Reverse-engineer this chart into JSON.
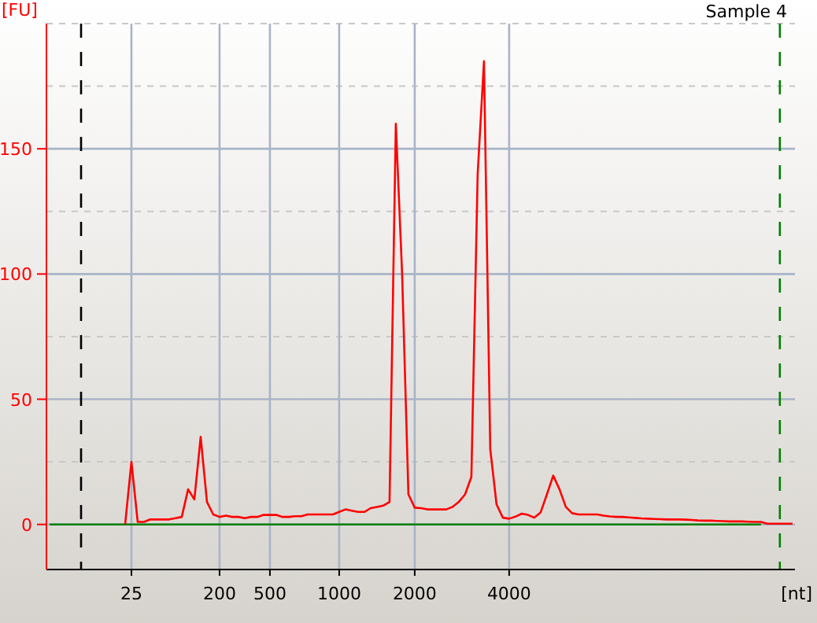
{
  "chart_data": {
    "type": "line",
    "title": "Sample 4",
    "xlabel": "[nt]",
    "ylabel": "[FU]",
    "categories": [
      null,
      null,
      null,
      null,
      null,
      null,
      null,
      null,
      null,
      null,
      null,
      null,
      null,
      "25",
      null,
      null,
      null,
      null,
      null,
      null,
      null,
      null,
      null,
      null,
      null,
      null,
      null,
      "200",
      null,
      null,
      null,
      null,
      null,
      null,
      null,
      "500",
      null,
      null,
      null,
      null,
      null,
      null,
      null,
      null,
      null,
      null,
      "1000",
      null,
      null,
      null,
      null,
      null,
      null,
      null,
      null,
      null,
      null,
      null,
      "2000",
      null,
      null,
      null,
      null,
      null,
      null,
      null,
      null,
      null,
      null,
      null,
      null,
      null,
      null,
      "4000",
      null,
      null,
      null,
      null,
      null,
      null,
      null,
      null,
      null,
      null,
      null,
      null,
      null,
      null,
      null,
      null,
      null,
      null,
      null,
      null,
      null,
      null,
      null,
      null,
      null,
      null,
      null,
      null,
      null,
      null,
      null,
      null,
      null,
      null,
      null,
      null,
      null,
      null,
      null,
      null,
      null,
      null,
      null,
      null,
      null
    ],
    "series": [
      {
        "color": "#008000",
        "values": [
          0,
          0,
          0,
          0,
          0,
          0,
          0,
          0,
          0,
          0,
          0,
          0,
          0,
          0,
          0,
          0,
          0,
          0,
          0,
          0,
          0,
          0,
          0,
          0,
          0,
          0,
          0,
          0,
          0,
          0,
          0,
          0,
          0,
          0,
          0,
          0,
          0,
          0,
          0,
          0,
          0,
          0,
          0,
          0,
          0,
          0,
          0,
          0,
          0,
          0,
          0,
          0,
          0,
          0,
          0,
          0,
          0,
          0,
          0,
          0,
          0,
          0,
          0,
          0,
          0,
          0,
          0,
          0,
          0,
          0,
          0,
          0,
          0,
          0,
          0,
          0,
          0,
          0,
          0,
          0,
          0,
          0,
          0,
          0,
          0,
          0,
          0,
          0,
          0,
          0,
          0,
          0,
          0,
          0,
          0,
          0,
          0,
          0,
          0,
          0,
          0,
          0,
          0,
          0,
          0,
          0,
          0,
          0,
          0,
          0,
          0,
          0,
          0,
          0,
          null,
          null,
          null,
          null,
          null
        ]
      },
      {
        "color": "#ff0000",
        "values": [
          null,
          null,
          null,
          null,
          null,
          null,
          null,
          null,
          null,
          null,
          null,
          null,
          0,
          25,
          1,
          1,
          2,
          2,
          2,
          2,
          2.5,
          3,
          14,
          10,
          35,
          9,
          4,
          3,
          3.5,
          3,
          3,
          2.5,
          3,
          3,
          3.8,
          3.8,
          3.8,
          3,
          3,
          3.3,
          3.3,
          4,
          4,
          4,
          4,
          4,
          5,
          6,
          5.5,
          5,
          5,
          6.5,
          7,
          7.5,
          9,
          160,
          100,
          12,
          6.7,
          6.5,
          6,
          6,
          6,
          6,
          7,
          9,
          12,
          19,
          140,
          185,
          30,
          8,
          2.7,
          2.3,
          3.1,
          4.3,
          3.8,
          2.7,
          4.8,
          12,
          19.5,
          14,
          7,
          4.5,
          4,
          4,
          4,
          4,
          3.5,
          3.2,
          3,
          3,
          2.8,
          2.6,
          2.4,
          2.3,
          2.2,
          2.1,
          2,
          2,
          2,
          1.9,
          1.8,
          1.6,
          1.5,
          1.5,
          1.4,
          1.3,
          1.2,
          1.2,
          1.2,
          1.1,
          1,
          1,
          0.3,
          0.3,
          0.3,
          0.3,
          0.3
        ]
      }
    ],
    "ylim": [
      -18,
      200
    ],
    "yticks": [
      0,
      {
        "value": 25,
        "label": null
      },
      50,
      {
        "value": 75,
        "label": null
      },
      100,
      {
        "value": 125,
        "label": null
      },
      150,
      {
        "value": 175,
        "label": null
      },
      {
        "value": 200,
        "label": null
      }
    ],
    "grid": true
  }
}
